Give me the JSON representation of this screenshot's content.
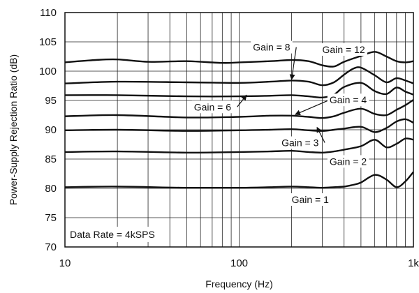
{
  "chart_data": {
    "type": "line",
    "xlabel": "Frequency (Hz)",
    "ylabel": "Power-Supply Rejection Ratio (dB)",
    "x_scale": "log",
    "xlim": [
      10,
      1000
    ],
    "ylim": [
      70,
      110
    ],
    "x_ticks": [
      10,
      100,
      1000
    ],
    "x_tick_labels": [
      "10",
      "100",
      "1k"
    ],
    "y_ticks": [
      70,
      75,
      80,
      85,
      90,
      95,
      100,
      105,
      110
    ],
    "grid": true,
    "note": "Data Rate = 4kSPS",
    "series": [
      {
        "name": "Gain = 12",
        "color": "#111111",
        "points": [
          [
            10,
            101.5
          ],
          [
            15,
            101.9
          ],
          [
            20,
            102.0
          ],
          [
            30,
            101.6
          ],
          [
            50,
            101.7
          ],
          [
            80,
            101.4
          ],
          [
            100,
            101.5
          ],
          [
            150,
            101.7
          ],
          [
            200,
            101.9
          ],
          [
            250,
            101.7
          ],
          [
            300,
            101.0
          ],
          [
            350,
            100.8
          ],
          [
            400,
            101.6
          ],
          [
            500,
            102.6
          ],
          [
            600,
            103.3
          ],
          [
            700,
            102.5
          ],
          [
            800,
            101.7
          ],
          [
            900,
            101.5
          ],
          [
            1000,
            101.7
          ]
        ]
      },
      {
        "name": "Gain = 8",
        "color": "#111111",
        "points": [
          [
            10,
            97.9
          ],
          [
            20,
            98.2
          ],
          [
            50,
            98.1
          ],
          [
            100,
            98.0
          ],
          [
            150,
            98.2
          ],
          [
            200,
            98.4
          ],
          [
            250,
            98.2
          ],
          [
            300,
            97.6
          ],
          [
            350,
            98.1
          ],
          [
            400,
            99.4
          ],
          [
            450,
            100.4
          ],
          [
            500,
            100.6
          ],
          [
            600,
            99.3
          ],
          [
            700,
            98.1
          ],
          [
            800,
            98.8
          ],
          [
            900,
            98.4
          ],
          [
            1000,
            97.9
          ]
        ]
      },
      {
        "name": "Gain = 6",
        "color": "#111111",
        "points": [
          [
            10,
            95.9
          ],
          [
            20,
            95.9
          ],
          [
            50,
            95.7
          ],
          [
            100,
            95.7
          ],
          [
            150,
            95.8
          ],
          [
            200,
            95.9
          ],
          [
            250,
            95.7
          ],
          [
            300,
            95.5
          ],
          [
            350,
            96.0
          ],
          [
            400,
            97.3
          ],
          [
            500,
            98.0
          ],
          [
            600,
            96.6
          ],
          [
            700,
            96.1
          ],
          [
            800,
            97.2
          ],
          [
            900,
            96.5
          ],
          [
            1000,
            96.0
          ]
        ]
      },
      {
        "name": "Gain = 4",
        "color": "#111111",
        "points": [
          [
            10,
            92.3
          ],
          [
            20,
            92.5
          ],
          [
            50,
            92.1
          ],
          [
            100,
            92.2
          ],
          [
            150,
            92.4
          ],
          [
            200,
            92.4
          ],
          [
            250,
            92.2
          ],
          [
            300,
            92.0
          ],
          [
            350,
            92.3
          ],
          [
            400,
            92.9
          ],
          [
            500,
            93.6
          ],
          [
            600,
            92.7
          ],
          [
            700,
            92.5
          ],
          [
            800,
            93.4
          ],
          [
            900,
            94.2
          ],
          [
            1000,
            95.1
          ]
        ]
      },
      {
        "name": "Gain = 3",
        "color": "#111111",
        "points": [
          [
            10,
            89.9
          ],
          [
            20,
            90.0
          ],
          [
            50,
            89.8
          ],
          [
            100,
            89.9
          ],
          [
            150,
            90.0
          ],
          [
            200,
            90.1
          ],
          [
            250,
            89.9
          ],
          [
            300,
            89.8
          ],
          [
            350,
            90.0
          ],
          [
            400,
            90.2
          ],
          [
            500,
            90.5
          ],
          [
            600,
            89.6
          ],
          [
            700,
            90.3
          ],
          [
            800,
            91.4
          ],
          [
            900,
            91.8
          ],
          [
            1000,
            91.2
          ]
        ]
      },
      {
        "name": "Gain = 2",
        "color": "#111111",
        "points": [
          [
            10,
            86.2
          ],
          [
            20,
            86.3
          ],
          [
            50,
            86.1
          ],
          [
            100,
            86.2
          ],
          [
            150,
            86.3
          ],
          [
            200,
            86.4
          ],
          [
            250,
            86.2
          ],
          [
            300,
            86.1
          ],
          [
            350,
            86.3
          ],
          [
            400,
            86.6
          ],
          [
            500,
            87.2
          ],
          [
            600,
            88.3
          ],
          [
            700,
            87.0
          ],
          [
            800,
            87.6
          ],
          [
            900,
            88.5
          ],
          [
            1000,
            88.3
          ]
        ]
      },
      {
        "name": "Gain = 1",
        "color": "#111111",
        "points": [
          [
            10,
            80.2
          ],
          [
            20,
            80.3
          ],
          [
            50,
            80.1
          ],
          [
            100,
            80.1
          ],
          [
            150,
            80.2
          ],
          [
            200,
            80.3
          ],
          [
            250,
            80.2
          ],
          [
            300,
            80.1
          ],
          [
            350,
            80.2
          ],
          [
            400,
            80.3
          ],
          [
            450,
            80.6
          ],
          [
            500,
            81.0
          ],
          [
            600,
            82.3
          ],
          [
            700,
            81.5
          ],
          [
            800,
            80.2
          ],
          [
            900,
            81.2
          ],
          [
            1000,
            82.8
          ]
        ]
      }
    ],
    "annotations": [
      {
        "text": "Gain = 12",
        "x": 300,
        "y": 103.1,
        "anchor": "start"
      },
      {
        "text": "Gain = 8",
        "x": 120,
        "y": 103.5,
        "anchor": "start",
        "arrow_to": [
          200,
          98.6
        ]
      },
      {
        "text": "Gain = 6",
        "x": 55,
        "y": 93.3,
        "anchor": "start",
        "arrow_to": [
          110,
          95.9
        ]
      },
      {
        "text": "Gain = 4",
        "x": 330,
        "y": 94.5,
        "anchor": "start",
        "arrow_to": [
          210,
          92.6
        ]
      },
      {
        "text": "Gain = 3",
        "x": 175,
        "y": 87.2,
        "anchor": "start",
        "arrow_to": [
          280,
          90.4
        ]
      },
      {
        "text": "Gain = 2",
        "x": 330,
        "y": 84.0,
        "anchor": "start"
      },
      {
        "text": "Gain = 1",
        "x": 200,
        "y": 77.5,
        "anchor": "start"
      }
    ]
  }
}
